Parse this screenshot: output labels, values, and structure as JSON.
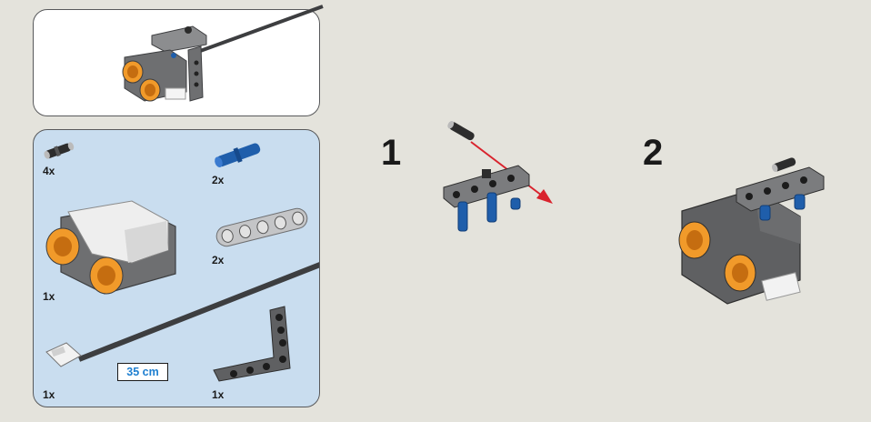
{
  "parts": {
    "items": [
      {
        "name": "black-connector-pin",
        "qty": "4x"
      },
      {
        "name": "blue-axle-pin",
        "qty": "2x"
      },
      {
        "name": "ultrasonic-sensor",
        "qty": "1x"
      },
      {
        "name": "straight-beam-5",
        "qty": "2x"
      },
      {
        "name": "connector-cable",
        "qty": "1x"
      },
      {
        "name": "angled-beam",
        "qty": "1x"
      }
    ],
    "cable_length": "35 cm"
  },
  "steps": [
    {
      "number": "1"
    },
    {
      "number": "2"
    }
  ],
  "colors": {
    "background": "#e4e3dc",
    "parts_panel": "#c9ddef",
    "sensor_orange": "#f19a2a",
    "pin_blue": "#1f5eab",
    "arrow_red": "#d9232d",
    "beam_grey": "#5f6062"
  }
}
